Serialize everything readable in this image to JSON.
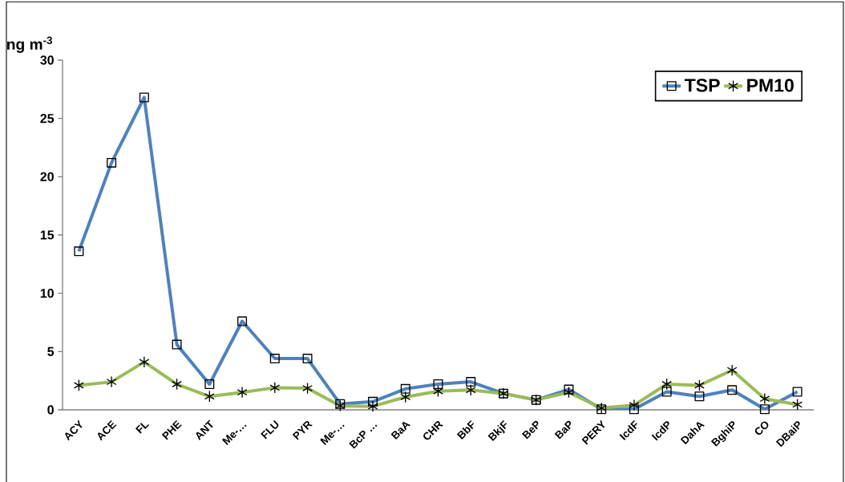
{
  "chart_data": {
    "type": "line",
    "ylabel": "ng m$^{-3}$",
    "categories": [
      "ACY",
      "ACE",
      "FL",
      "PHE",
      "ANT",
      "Me-…",
      "FLU",
      "PYR",
      "Me-…",
      "BcP …",
      "BaA",
      "CHR",
      "BbF",
      "BkjF",
      "BeP",
      "BaP",
      "PERY",
      "IcdF",
      "IcdP",
      "DahA",
      "BghiP",
      "CO",
      "DBaiP"
    ],
    "series": [
      {
        "name": "TSP",
        "color": "#4f81bd",
        "marker": "square",
        "values": [
          13.6,
          21.2,
          26.8,
          5.6,
          2.2,
          7.6,
          4.4,
          4.4,
          0.5,
          0.7,
          1.8,
          2.2,
          2.4,
          1.4,
          0.85,
          1.75,
          0.05,
          0.05,
          1.55,
          1.15,
          1.7,
          0.05,
          1.55
        ]
      },
      {
        "name": "PM10",
        "color": "#9bbb59",
        "marker": "cross",
        "values": [
          2.1,
          2.4,
          4.1,
          2.2,
          1.15,
          1.5,
          1.9,
          1.85,
          0.35,
          0.3,
          1.1,
          1.6,
          1.7,
          1.4,
          0.85,
          1.5,
          0.15,
          0.4,
          2.2,
          2.1,
          3.4,
          0.95,
          0.45
        ]
      }
    ],
    "ylim": [
      0,
      30
    ],
    "yticks": [
      0,
      5,
      10,
      15,
      20,
      25,
      30
    ],
    "grid": false,
    "legend": "top right",
    "line_style": "solid"
  }
}
